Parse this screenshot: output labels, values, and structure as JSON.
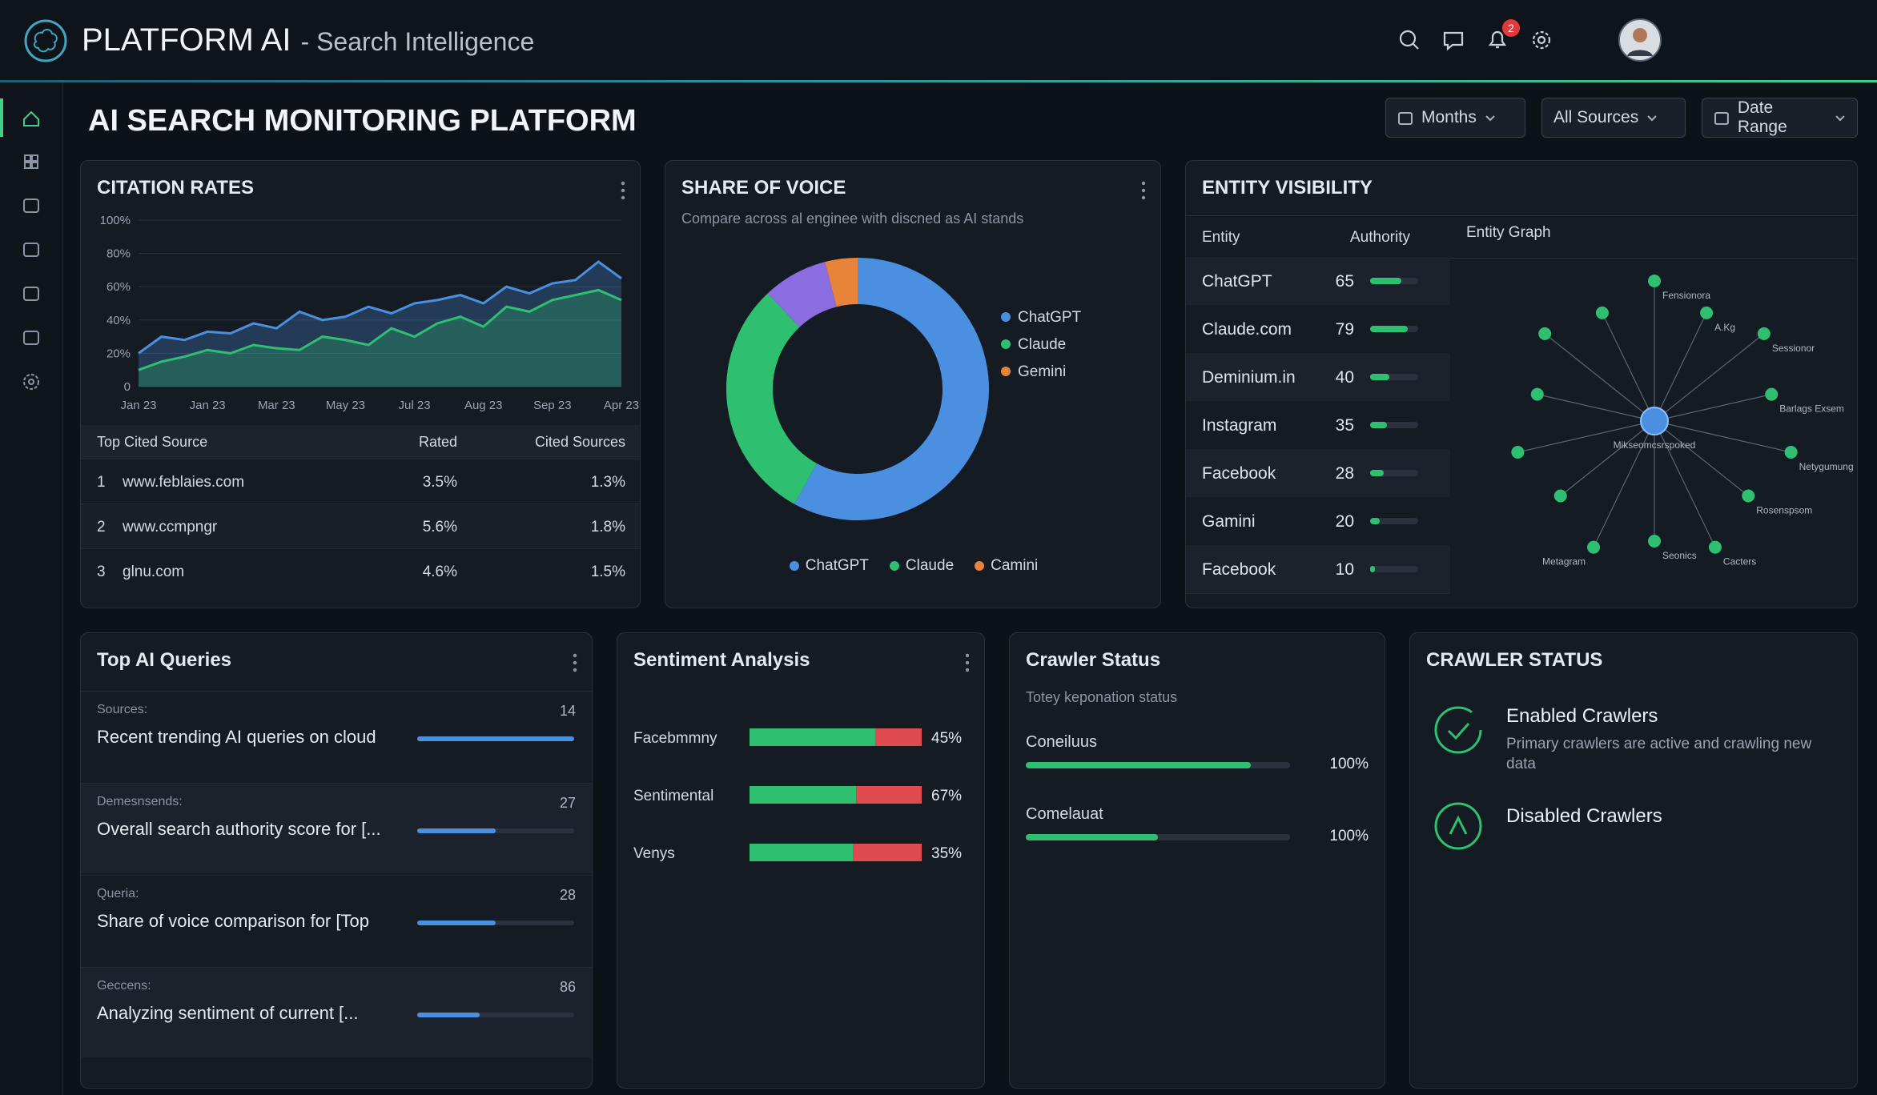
{
  "header": {
    "brand": "PLATFORM AI",
    "subtitle": "- Search Intelligence",
    "notifications": "2"
  },
  "page_title": "AI SEARCH MONITORING PLATFORM",
  "filters": [
    "Months",
    "All Sources",
    "Date Range"
  ],
  "citation_rates": {
    "type": "area",
    "title": "CITATION RATES",
    "categories": [
      "Jan 23",
      null,
      null,
      "Jan 23",
      null,
      null,
      "Mar 23",
      null,
      null,
      "May 23",
      null,
      null,
      "Jul 23",
      null,
      null,
      "Aug 23",
      null,
      null,
      "Sep 23",
      null,
      null,
      "Apr 23"
    ],
    "series": [
      {
        "color": "#4a8fe0",
        "values": [
          20,
          30,
          28,
          33,
          32,
          38,
          35,
          45,
          40,
          42,
          48,
          44,
          50,
          52,
          55,
          50,
          60,
          56,
          62,
          64,
          75,
          65
        ]
      },
      {
        "color": "#2fbf71",
        "values": [
          10,
          15,
          18,
          22,
          20,
          25,
          23,
          22,
          30,
          28,
          25,
          35,
          30,
          38,
          42,
          36,
          48,
          45,
          52,
          55,
          58,
          52
        ]
      }
    ],
    "ylim": [
      0,
      100
    ],
    "yticks": [
      0,
      {
        "value": 20,
        "label": "20%"
      },
      {
        "value": 40,
        "label": "40%"
      },
      {
        "value": 60,
        "label": "60%"
      },
      {
        "value": 80,
        "label": "80%"
      },
      {
        "value": 100,
        "label": "100%"
      }
    ],
    "grid": true,
    "table": {
      "columns": [
        "Top Cited Source",
        "Rated",
        "Cited Sources"
      ],
      "rows": [
        [
          "1",
          "www.feblaies.com",
          "3.5%",
          "1.3%"
        ],
        [
          "2",
          "www.ccmpngr",
          "5.6%",
          "1.8%"
        ],
        [
          "3",
          "glnu.com",
          "4.6%",
          "1.5%"
        ]
      ]
    }
  },
  "share_of_voice": {
    "type": "donut",
    "title": "SHARE OF VOICE",
    "subtitle": "Compare across al enginee with discned as AI stands",
    "categories": [
      "ChatGPT",
      "Claude",
      null,
      "Gemini"
    ],
    "values": [
      58,
      30,
      8,
      4
    ],
    "colors": [
      "#4a8fe0",
      "#2fbf71",
      "#8a6de0",
      "#e8843a"
    ],
    "bottom_legend": [
      {
        "name": "ChatGPT",
        "color": "#4a8fe0"
      },
      {
        "name": "Claude",
        "color": "#2fbf71"
      },
      {
        "name": "Camini",
        "color": "#e8843a"
      }
    ]
  },
  "entity_visibility": {
    "type": "bar",
    "title": "ENTITY VISIBILITY",
    "columns": [
      "Entity",
      "Authority",
      "Entity Graph"
    ],
    "categories": [
      "ChatGPT",
      "Claude.com",
      "Deminium.in",
      "Instagram",
      "Facebook",
      "Gamini",
      "Facebook"
    ],
    "values": [
      65,
      79,
      40,
      35,
      28,
      20,
      10
    ],
    "xlim": [
      0,
      100
    ],
    "color": "#2fbf71",
    "graph": {
      "center": "Mikseomcsrspoked",
      "nodes": [
        "Fensionora",
        "A.Kg",
        "Sessionor",
        "Barlags Exsem",
        "Netygumung",
        "Rosenspsom",
        "Cacters",
        "Seonics",
        "Metagram"
      ]
    }
  },
  "top_ai_queries": {
    "title": "Top AI Queries",
    "items": [
      {
        "label": "Sources:",
        "text": "Recent trending AI queries on cloud",
        "count": 14,
        "progress": 100
      },
      {
        "label": "Demesnsends:",
        "text": "Overall search authority score for [...",
        "count": 27,
        "progress": 50
      },
      {
        "label": "Queria:",
        "text": "Share of voice comparison for [Top",
        "count": 28,
        "progress": 50
      },
      {
        "label": "Geccens:",
        "text": "Analyzing sentiment of current [...",
        "count": 86,
        "progress": 40
      }
    ]
  },
  "sentiment_analysis": {
    "type": "bar",
    "title": "Sentiment Analysis",
    "categories": [
      "Facebmmny",
      "Sentimental",
      "Venys"
    ],
    "values": [
      45,
      67,
      35
    ],
    "value_labels": [
      "45%",
      "67%",
      "35%"
    ],
    "positive": [
      73,
      62,
      60
    ],
    "negative": [
      27,
      38,
      40
    ]
  },
  "crawler_status": {
    "title": "Crawler Status",
    "subtitle": "Totey keponation status",
    "categories": [
      "Coneiluus",
      "Comelauat"
    ],
    "values": [
      100,
      100
    ],
    "value_labels": [
      "100%",
      "100%"
    ],
    "progress": [
      85,
      50
    ]
  },
  "crawler_summary": {
    "title": "CRAWLER STATUS",
    "items": [
      {
        "title": "Enabled Crawlers",
        "text": "Primary crawlers are active and crawling new data"
      },
      {
        "title": "Disabled Crawlers"
      }
    ]
  }
}
